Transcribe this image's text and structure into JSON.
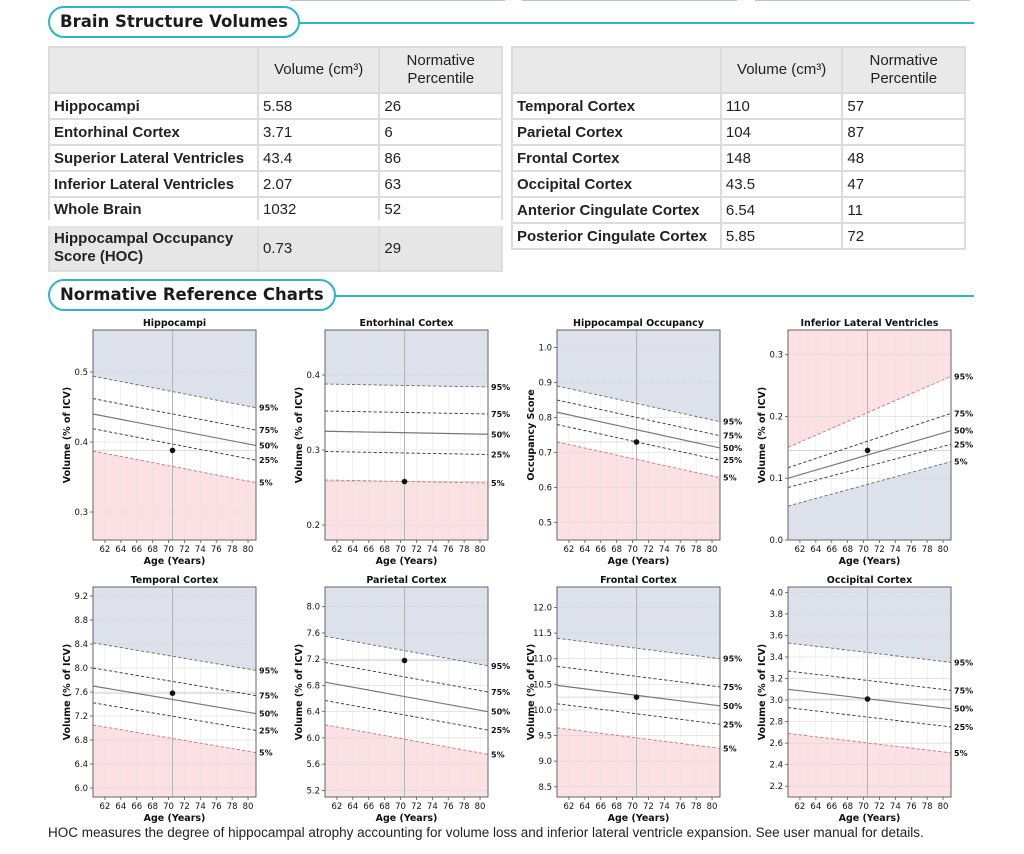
{
  "sections": {
    "volumes_title": "Brain Structure Volumes",
    "charts_title": "Normative Reference Charts"
  },
  "colors": {
    "accent": "#2bb5c7",
    "upper_band": "#dde1ec",
    "lower_band": "#fbe1e3",
    "header_fill": "#e9e9e9"
  },
  "left_table": {
    "headers": [
      "",
      "Volume (cm³)",
      "Normative Percentile"
    ],
    "rows": [
      {
        "name": "Hippocampi",
        "volume": "5.58",
        "percentile": "26"
      },
      {
        "name": "Entorhinal Cortex",
        "volume": "3.71",
        "percentile": "6"
      },
      {
        "name": "Superior Lateral Ventricles",
        "volume": "43.4",
        "percentile": "86"
      },
      {
        "name": "Inferior Lateral Ventricles",
        "volume": "2.07",
        "percentile": "63"
      },
      {
        "name": "Whole Brain",
        "volume": "1032",
        "percentile": "52"
      }
    ],
    "hoc": {
      "name": "Hippocampal Occupancy Score (HOC)",
      "volume": "0.73",
      "percentile": "29"
    }
  },
  "right_table": {
    "headers": [
      "",
      "Volume (cm³)",
      "Normative Percentile"
    ],
    "rows": [
      {
        "name": "Temporal Cortex",
        "volume": "110",
        "percentile": "57"
      },
      {
        "name": "Parietal Cortex",
        "volume": "104",
        "percentile": "87"
      },
      {
        "name": "Frontal Cortex",
        "volume": "148",
        "percentile": "48"
      },
      {
        "name": "Occipital Cortex",
        "volume": "43.5",
        "percentile": "47"
      },
      {
        "name": "Anterior Cingulate Cortex",
        "volume": "6.54",
        "percentile": "11"
      },
      {
        "name": "Posterior Cingulate Cortex",
        "volume": "5.85",
        "percentile": "72"
      }
    ]
  },
  "chart_data": [
    {
      "type": "line",
      "title": "Hippocampi",
      "xlabel": "Age (Years)",
      "ylabel": "Volume (% of ICV)",
      "xlim": [
        60.5,
        81
      ],
      "ylim": [
        0.26,
        0.56
      ],
      "yticks": [
        0.3,
        0.4,
        0.5
      ],
      "ytick_labels": [
        "0.3",
        "0.4",
        "0.5"
      ],
      "xticks": [
        62,
        64,
        66,
        68,
        70,
        72,
        74,
        76,
        78,
        80
      ],
      "xtick_labels": [
        "62",
        "64",
        "66",
        "68",
        "70",
        "72",
        "74",
        "76",
        "78",
        "80"
      ],
      "vline": 70.5,
      "high_fill": "upper",
      "percentile_labels": [
        "95%",
        "75%",
        "50%",
        "25%",
        "5%"
      ],
      "percentiles": [
        {
          "name": "95%",
          "y0": 0.494,
          "y1": 0.449
        },
        {
          "name": "75%",
          "y0": 0.462,
          "y1": 0.417
        },
        {
          "name": "50%",
          "y0": 0.44,
          "y1": 0.395
        },
        {
          "name": "25%",
          "y0": 0.419,
          "y1": 0.374
        },
        {
          "name": "5%",
          "y0": 0.387,
          "y1": 0.342
        }
      ],
      "point": {
        "age": 70.5,
        "value": 0.388
      }
    },
    {
      "type": "line",
      "title": "Entorhinal Cortex",
      "xlabel": "Age (Years)",
      "ylabel": "Volume (% of ICV)",
      "xlim": [
        60.5,
        81
      ],
      "ylim": [
        0.18,
        0.46
      ],
      "yticks": [
        0.2,
        0.3,
        0.4
      ],
      "ytick_labels": [
        "0.2",
        "0.3",
        "0.4"
      ],
      "xticks": [
        62,
        64,
        66,
        68,
        70,
        72,
        74,
        76,
        78,
        80
      ],
      "xtick_labels": [
        "62",
        "64",
        "66",
        "68",
        "70",
        "72",
        "74",
        "76",
        "78",
        "80"
      ],
      "vline": 70.5,
      "high_fill": "upper",
      "percentile_labels": [
        "95%",
        "75%",
        "50%",
        "25%",
        "5%"
      ],
      "percentiles": [
        {
          "name": "95%",
          "y0": 0.388,
          "y1": 0.384
        },
        {
          "name": "75%",
          "y0": 0.352,
          "y1": 0.348
        },
        {
          "name": "50%",
          "y0": 0.325,
          "y1": 0.321
        },
        {
          "name": "25%",
          "y0": 0.298,
          "y1": 0.294
        },
        {
          "name": "5%",
          "y0": 0.26,
          "y1": 0.256
        }
      ],
      "point": {
        "age": 70.5,
        "value": 0.258
      }
    },
    {
      "type": "line",
      "title": "Hippocampal Occupancy",
      "xlabel": "Age (Years)",
      "ylabel": "Occupancy Score",
      "xlim": [
        60.5,
        81
      ],
      "ylim": [
        0.45,
        1.05
      ],
      "yticks": [
        0.5,
        0.6,
        0.7,
        0.8,
        0.9,
        1.0
      ],
      "ytick_labels": [
        "0.5",
        "0.6",
        "0.7",
        "0.8",
        "0.9",
        "1.0"
      ],
      "xticks": [
        62,
        64,
        66,
        68,
        70,
        72,
        74,
        76,
        78,
        80
      ],
      "xtick_labels": [
        "62",
        "64",
        "66",
        "68",
        "70",
        "72",
        "74",
        "76",
        "78",
        "80"
      ],
      "vline": 70.5,
      "high_fill": "upper",
      "percentile_labels": [
        "95%",
        "75%",
        "50%",
        "25%",
        "5%"
      ],
      "percentiles": [
        {
          "name": "95%",
          "y0": 0.89,
          "y1": 0.788
        },
        {
          "name": "75%",
          "y0": 0.85,
          "y1": 0.748
        },
        {
          "name": "50%",
          "y0": 0.815,
          "y1": 0.713
        },
        {
          "name": "25%",
          "y0": 0.78,
          "y1": 0.678
        },
        {
          "name": "5%",
          "y0": 0.73,
          "y1": 0.628
        }
      ],
      "point": {
        "age": 70.5,
        "value": 0.73
      }
    },
    {
      "type": "line",
      "title": "Inferior Lateral Ventricles",
      "xlabel": "Age (Years)",
      "ylabel": "Volume (% of ICV)",
      "xlim": [
        60.5,
        81
      ],
      "ylim": [
        0,
        0.34
      ],
      "yticks": [
        0.0,
        0.1,
        0.2,
        0.3
      ],
      "ytick_labels": [
        "0.0",
        "0.1",
        "0.2",
        "0.3"
      ],
      "xticks": [
        62,
        64,
        66,
        68,
        70,
        72,
        74,
        76,
        78,
        80
      ],
      "xtick_labels": [
        "62",
        "64",
        "66",
        "68",
        "70",
        "72",
        "74",
        "76",
        "78",
        "80"
      ],
      "vline": 70.5,
      "high_fill": "lower",
      "percentile_labels": [
        "95%",
        "75%",
        "50%",
        "25%",
        "5%"
      ],
      "percentiles": [
        {
          "name": "95%",
          "y0": 0.15,
          "y1": 0.265
        },
        {
          "name": "75%",
          "y0": 0.117,
          "y1": 0.205
        },
        {
          "name": "50%",
          "y0": 0.1,
          "y1": 0.177
        },
        {
          "name": "25%",
          "y0": 0.085,
          "y1": 0.155
        },
        {
          "name": "5%",
          "y0": 0.055,
          "y1": 0.127
        }
      ],
      "point": {
        "age": 70.5,
        "value": 0.145
      }
    },
    {
      "type": "line",
      "title": "Temporal Cortex",
      "xlabel": "Age (Years)",
      "ylabel": "Volume (% of ICV)",
      "xlim": [
        60.5,
        81
      ],
      "ylim": [
        5.85,
        9.35
      ],
      "yticks": [
        6.0,
        6.4,
        6.8,
        7.2,
        7.6,
        8.0,
        8.4,
        8.8,
        9.2
      ],
      "ytick_labels": [
        "6.0",
        "6.4",
        "6.8",
        "7.2",
        "7.6",
        "8.0",
        "8.4",
        "8.8",
        "9.2"
      ],
      "xticks": [
        62,
        64,
        66,
        68,
        70,
        72,
        74,
        76,
        78,
        80
      ],
      "xtick_labels": [
        "62",
        "64",
        "66",
        "68",
        "70",
        "72",
        "74",
        "76",
        "78",
        "80"
      ],
      "vline": 70.5,
      "high_fill": "upper",
      "percentile_labels": [
        "95%",
        "75%",
        "50%",
        "25%",
        "5%"
      ],
      "percentiles": [
        {
          "name": "95%",
          "y0": 8.42,
          "y1": 7.96
        },
        {
          "name": "75%",
          "y0": 8.0,
          "y1": 7.54
        },
        {
          "name": "50%",
          "y0": 7.7,
          "y1": 7.24
        },
        {
          "name": "25%",
          "y0": 7.42,
          "y1": 6.96
        },
        {
          "name": "5%",
          "y0": 7.05,
          "y1": 6.59
        }
      ],
      "point": {
        "age": 70.5,
        "value": 7.58
      }
    },
    {
      "type": "line",
      "title": "Parietal Cortex",
      "xlabel": "Age (Years)",
      "ylabel": "Volume (% of ICV)",
      "xlim": [
        60.5,
        81
      ],
      "ylim": [
        5.1,
        8.3
      ],
      "yticks": [
        5.2,
        5.6,
        6.0,
        6.4,
        6.8,
        7.2,
        7.6,
        8.0
      ],
      "ytick_labels": [
        "5.2",
        "5.6",
        "6.0",
        "6.4",
        "6.8",
        "7.2",
        "7.6",
        "8.0"
      ],
      "xticks": [
        62,
        64,
        66,
        68,
        70,
        72,
        74,
        76,
        78,
        80
      ],
      "xtick_labels": [
        "62",
        "64",
        "66",
        "68",
        "70",
        "72",
        "74",
        "76",
        "78",
        "80"
      ],
      "vline": 70.5,
      "high_fill": "upper",
      "percentile_labels": [
        "95%",
        "75%",
        "50%",
        "25%",
        "5%"
      ],
      "percentiles": [
        {
          "name": "95%",
          "y0": 7.55,
          "y1": 7.1
        },
        {
          "name": "75%",
          "y0": 7.15,
          "y1": 6.7
        },
        {
          "name": "50%",
          "y0": 6.85,
          "y1": 6.4
        },
        {
          "name": "25%",
          "y0": 6.57,
          "y1": 6.12
        },
        {
          "name": "5%",
          "y0": 6.2,
          "y1": 5.75
        }
      ],
      "point": {
        "age": 70.5,
        "value": 7.18
      }
    },
    {
      "type": "line",
      "title": "Frontal Cortex",
      "xlabel": "Age (Years)",
      "ylabel": "Volume (% of ICV)",
      "xlim": [
        60.5,
        81
      ],
      "ylim": [
        8.3,
        12.4
      ],
      "yticks": [
        8.5,
        9.0,
        9.5,
        10.0,
        10.5,
        11.0,
        11.5,
        12.0
      ],
      "ytick_labels": [
        "8.5",
        "9.0",
        "9.5",
        "10.0",
        "10.5",
        "11.0",
        "11.5",
        "12.0"
      ],
      "xticks": [
        62,
        64,
        66,
        68,
        70,
        72,
        74,
        76,
        78,
        80
      ],
      "xtick_labels": [
        "62",
        "64",
        "66",
        "68",
        "70",
        "72",
        "74",
        "76",
        "78",
        "80"
      ],
      "vline": 70.5,
      "high_fill": "upper",
      "percentile_labels": [
        "95%",
        "75%",
        "50%",
        "25%",
        "5%"
      ],
      "percentiles": [
        {
          "name": "95%",
          "y0": 11.4,
          "y1": 11.0
        },
        {
          "name": "75%",
          "y0": 10.85,
          "y1": 10.45
        },
        {
          "name": "50%",
          "y0": 10.48,
          "y1": 10.08
        },
        {
          "name": "25%",
          "y0": 10.12,
          "y1": 9.72
        },
        {
          "name": "5%",
          "y0": 9.65,
          "y1": 9.25
        }
      ],
      "point": {
        "age": 70.5,
        "value": 10.25
      }
    },
    {
      "type": "line",
      "title": "Occipital Cortex",
      "xlabel": "Age (Years)",
      "ylabel": "Volume (% of ICV)",
      "xlim": [
        60.5,
        81
      ],
      "ylim": [
        2.1,
        4.05
      ],
      "yticks": [
        2.2,
        2.4,
        2.6,
        2.8,
        3.0,
        3.2,
        3.4,
        3.6,
        3.8,
        4.0
      ],
      "ytick_labels": [
        "2.2",
        "2.4",
        "2.6",
        "2.8",
        "3.0",
        "3.2",
        "3.4",
        "3.6",
        "3.8",
        "4.0"
      ],
      "xticks": [
        62,
        64,
        66,
        68,
        70,
        72,
        74,
        76,
        78,
        80
      ],
      "xtick_labels": [
        "62",
        "64",
        "66",
        "68",
        "70",
        "72",
        "74",
        "76",
        "78",
        "80"
      ],
      "vline": 70.5,
      "high_fill": "upper",
      "percentile_labels": [
        "95%",
        "75%",
        "50%",
        "25%",
        "5%"
      ],
      "percentiles": [
        {
          "name": "95%",
          "y0": 3.53,
          "y1": 3.35
        },
        {
          "name": "75%",
          "y0": 3.27,
          "y1": 3.09
        },
        {
          "name": "50%",
          "y0": 3.1,
          "y1": 2.92
        },
        {
          "name": "25%",
          "y0": 2.93,
          "y1": 2.75
        },
        {
          "name": "5%",
          "y0": 2.69,
          "y1": 2.51
        }
      ],
      "point": {
        "age": 70.5,
        "value": 3.01
      }
    }
  ],
  "footnote": "HOC measures the degree of hippocampal atrophy accounting for volume loss and inferior lateral ventricle expansion. See user manual for details."
}
